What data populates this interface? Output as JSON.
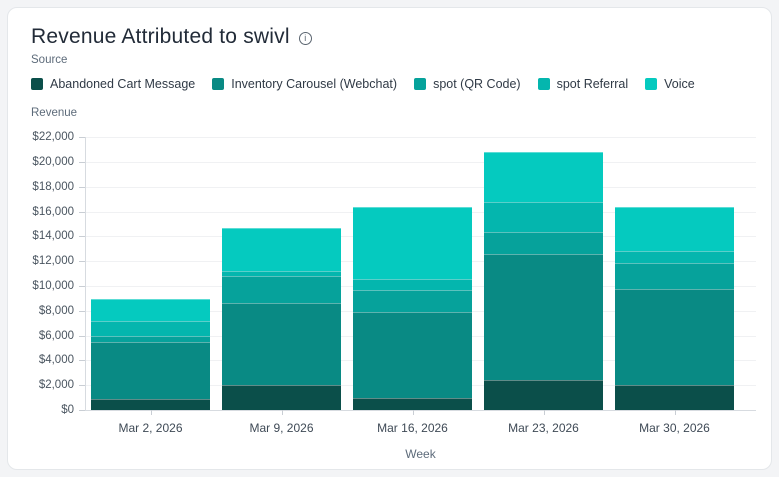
{
  "card": {
    "title": "Revenue Attributed to swivl",
    "info_icon_glyph": "i",
    "legend_label": "Source"
  },
  "chart_data": {
    "type": "bar",
    "stacked": true,
    "title": "Revenue Attributed to swivl",
    "xlabel": "Week",
    "ylabel": "Revenue",
    "categories": [
      "Mar 2, 2026",
      "Mar 9, 2026",
      "Mar 16, 2026",
      "Mar 23, 2026",
      "Mar 30, 2026"
    ],
    "series": [
      {
        "name": "Abandoned Cart Message",
        "color": "#0B4F4A",
        "values": [
          850,
          2050,
          950,
          2450,
          2050
        ]
      },
      {
        "name": "Inventory Carousel (Webchat)",
        "color": "#098A84",
        "values": [
          4600,
          6600,
          6950,
          10100,
          7750
        ]
      },
      {
        "name": "spot (QR Code)",
        "color": "#06A29B",
        "values": [
          500,
          2150,
          1750,
          1800,
          2050
        ]
      },
      {
        "name": "spot Referral",
        "color": "#04B6AE",
        "values": [
          1250,
          400,
          950,
          2400,
          950
        ]
      },
      {
        "name": "Voice",
        "color": "#05CABF",
        "values": [
          1750,
          3500,
          5750,
          4100,
          3550
        ]
      }
    ],
    "totals": [
      8950,
      14700,
      16350,
      20850,
      16350
    ],
    "ylim": [
      0,
      22000
    ],
    "y_tick_step": 2000,
    "y_tick_labels": [
      "$0",
      "$2,000",
      "$4,000",
      "$6,000",
      "$8,000",
      "$10,000",
      "$12,000",
      "$14,000",
      "$16,000",
      "$18,000",
      "$20,000",
      "$22,000"
    ],
    "grid": "horizontal",
    "legend_position": "top"
  }
}
